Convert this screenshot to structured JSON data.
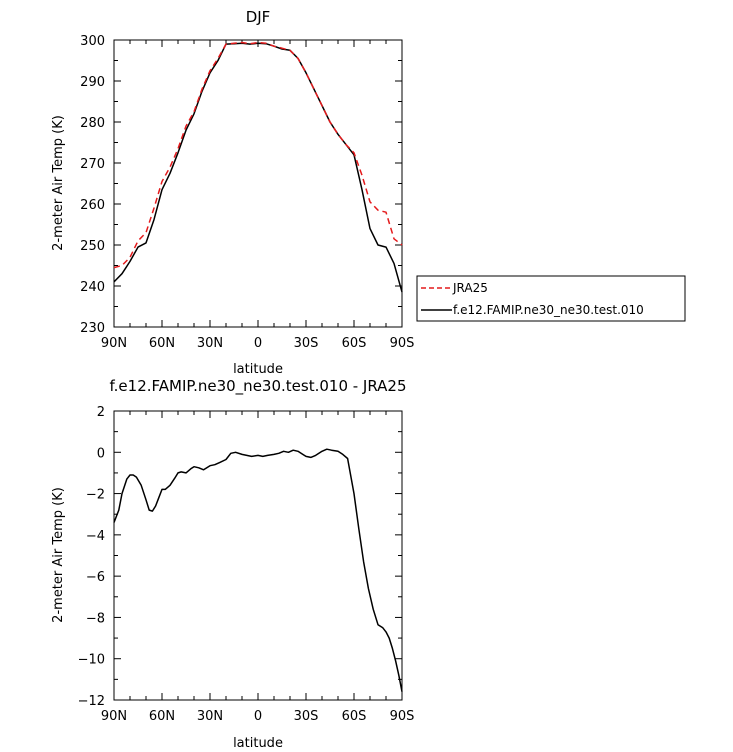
{
  "chart_data": [
    {
      "type": "line",
      "title": "DJF",
      "xlabel": "latitude",
      "ylabel": "2-meter Air Temp (K)",
      "xlim": [
        90,
        -90
      ],
      "ylim": [
        230,
        300
      ],
      "xticks": [
        {
          "value": 90,
          "label": "90N"
        },
        {
          "value": 60,
          "label": "60N"
        },
        {
          "value": 30,
          "label": "30N"
        },
        {
          "value": 0,
          "label": "0"
        },
        {
          "value": -30,
          "label": "30S"
        },
        {
          "value": -60,
          "label": "60S"
        },
        {
          "value": -90,
          "label": "90S"
        }
      ],
      "yticks": [
        230,
        240,
        250,
        260,
        270,
        280,
        290,
        300
      ],
      "legend": "right",
      "series": [
        {
          "name": "JRA25",
          "color": "#e41a1c",
          "dash": "dashed",
          "x": [
            90,
            85,
            80,
            75,
            70,
            65,
            60,
            55,
            50,
            45,
            40,
            35,
            30,
            25,
            20,
            15,
            10,
            5,
            0,
            -5,
            -10,
            -15,
            -20,
            -25,
            -30,
            -35,
            -40,
            -45,
            -50,
            -55,
            -60,
            -65,
            -70,
            -75,
            -80,
            -85,
            -90
          ],
          "y": [
            244.5,
            245.0,
            247.0,
            251.0,
            253.0,
            259.0,
            265.5,
            269.0,
            273.5,
            279.0,
            282.5,
            288.0,
            292.5,
            295.5,
            299.0,
            299.2,
            299.4,
            299.1,
            299.4,
            299.2,
            298.5,
            298.0,
            297.5,
            295.5,
            292.0,
            288.0,
            284.0,
            280.0,
            277.0,
            274.5,
            272.5,
            267.0,
            260.5,
            258.5,
            258.0,
            251.5,
            250.0
          ]
        },
        {
          "name": "f.e12.FAMIP.ne30_ne30.test.010",
          "color": "#000000",
          "dash": "solid",
          "x": [
            90,
            85,
            80,
            75,
            70,
            65,
            60,
            55,
            50,
            45,
            40,
            35,
            30,
            25,
            20,
            15,
            10,
            5,
            0,
            -5,
            -10,
            -15,
            -20,
            -25,
            -30,
            -35,
            -40,
            -45,
            -50,
            -55,
            -60,
            -65,
            -70,
            -75,
            -80,
            -85,
            -90
          ],
          "y": [
            241.0,
            243.0,
            246.0,
            249.5,
            250.5,
            256.2,
            263.5,
            267.5,
            272.5,
            278.0,
            282.0,
            287.5,
            292.0,
            295.0,
            299.0,
            299.1,
            299.2,
            299.0,
            299.2,
            299.1,
            298.5,
            297.8,
            297.5,
            295.5,
            292.0,
            288.0,
            284.0,
            280.0,
            277.0,
            274.5,
            272.0,
            263.5,
            254.0,
            250.0,
            249.5,
            245.5,
            238.5
          ]
        }
      ]
    },
    {
      "type": "line",
      "title": "f.e12.FAMIP.ne30_ne30.test.010 - JRA25",
      "xlabel": "latitude",
      "ylabel": "2-meter Air Temp (K)",
      "xlim": [
        90,
        -90
      ],
      "ylim": [
        -12,
        2
      ],
      "xticks": [
        {
          "value": 90,
          "label": "90N"
        },
        {
          "value": 60,
          "label": "60N"
        },
        {
          "value": 30,
          "label": "30N"
        },
        {
          "value": 0,
          "label": "0"
        },
        {
          "value": -30,
          "label": "30S"
        },
        {
          "value": -60,
          "label": "60S"
        },
        {
          "value": -90,
          "label": "90S"
        }
      ],
      "yticks": [
        -12,
        -10,
        -8,
        -6,
        -4,
        -2,
        0,
        2
      ],
      "series": [
        {
          "color": "#000000",
          "dash": "solid",
          "x": [
            90,
            87,
            85,
            82,
            80,
            78,
            76,
            73,
            70,
            68,
            66,
            64,
            62,
            60,
            58,
            55,
            52,
            50,
            48,
            45,
            42,
            40,
            37,
            34,
            30,
            27,
            24,
            20,
            17,
            14,
            10,
            7,
            4,
            0,
            -3,
            -6,
            -10,
            -13,
            -16,
            -19,
            -22,
            -25,
            -28,
            -30,
            -33,
            -36,
            -40,
            -43,
            -46,
            -50,
            -53,
            -56,
            -60,
            -63,
            -66,
            -69,
            -72,
            -75,
            -78,
            -80,
            -82,
            -84,
            -86,
            -88,
            -90
          ],
          "y": [
            -3.4,
            -2.8,
            -2.0,
            -1.3,
            -1.1,
            -1.1,
            -1.2,
            -1.6,
            -2.3,
            -2.8,
            -2.85,
            -2.6,
            -2.2,
            -1.8,
            -1.8,
            -1.6,
            -1.25,
            -1.0,
            -0.95,
            -1.0,
            -0.8,
            -0.7,
            -0.75,
            -0.85,
            -0.65,
            -0.6,
            -0.5,
            -0.35,
            -0.05,
            0.0,
            -0.1,
            -0.15,
            -0.2,
            -0.15,
            -0.2,
            -0.15,
            -0.1,
            -0.05,
            0.05,
            0.0,
            0.1,
            0.05,
            -0.1,
            -0.2,
            -0.25,
            -0.15,
            0.05,
            0.15,
            0.1,
            0.05,
            -0.1,
            -0.3,
            -2.0,
            -3.7,
            -5.3,
            -6.6,
            -7.6,
            -8.35,
            -8.5,
            -8.7,
            -9.0,
            -9.5,
            -10.1,
            -10.8,
            -11.6
          ]
        }
      ]
    }
  ]
}
